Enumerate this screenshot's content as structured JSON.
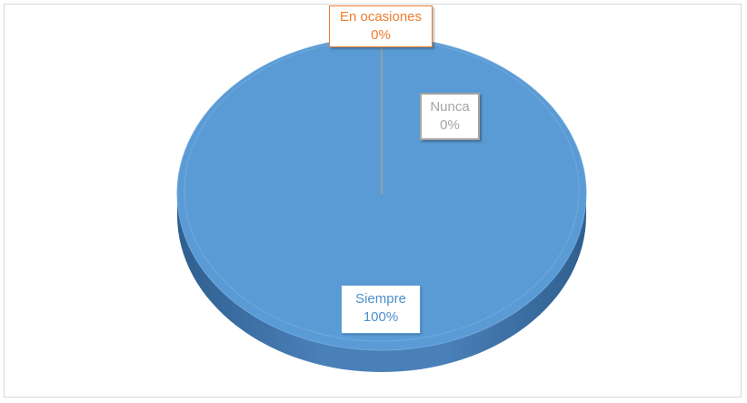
{
  "chart_data": {
    "type": "pie",
    "style": "3d",
    "slices": [
      {
        "label": "Siempre",
        "value": 100,
        "percent_label": "100%",
        "color": "#5b9bd5"
      },
      {
        "label": "En ocasiones",
        "value": 0,
        "percent_label": "0%",
        "color": "#ed7d31"
      },
      {
        "label": "Nunca",
        "value": 0,
        "percent_label": "0%",
        "color": "#a5a5a5"
      }
    ],
    "title": "",
    "legend": "none"
  }
}
